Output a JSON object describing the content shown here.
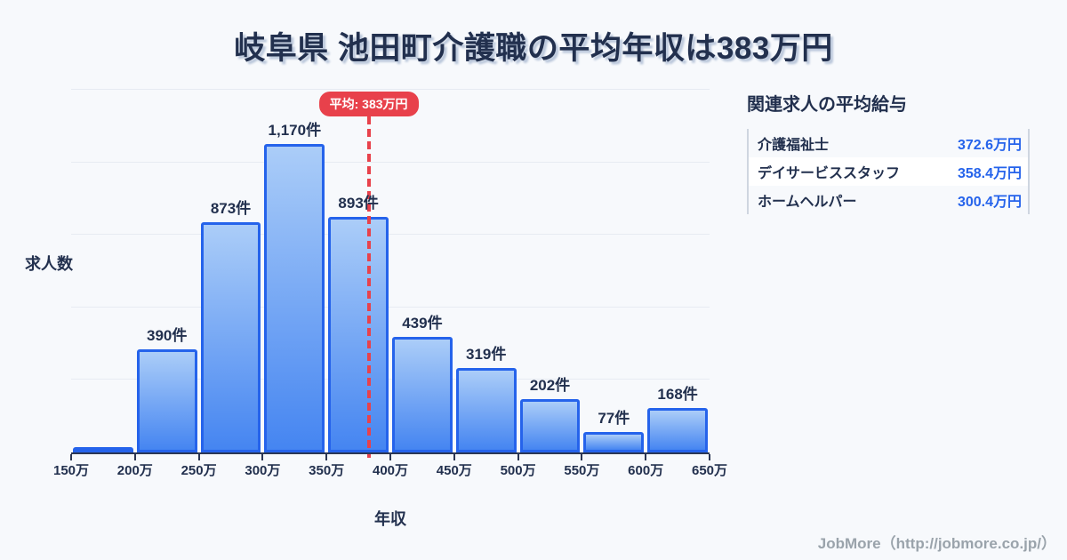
{
  "title": "岐阜県 池田町介護職の平均年収は383万円",
  "chart_data": {
    "type": "bar",
    "title": "岐阜県 池田町介護職の平均年収は383万円",
    "xlabel": "年収",
    "ylabel": "求人数",
    "x_ticks": [
      "150万",
      "200万",
      "250万",
      "300万",
      "350万",
      "400万",
      "450万",
      "500万",
      "550万",
      "600万",
      "650万"
    ],
    "bin_edges": [
      150,
      200,
      250,
      300,
      350,
      400,
      450,
      500,
      550,
      600,
      650
    ],
    "values": [
      15,
      390,
      873,
      1170,
      893,
      439,
      319,
      202,
      77,
      168
    ],
    "bar_labels": [
      "",
      "390件",
      "873件",
      "1,170件",
      "893件",
      "439件",
      "319件",
      "202件",
      "77件",
      "168件"
    ],
    "ylim": [
      0,
      1375
    ],
    "grid": "horizontal",
    "xlim": [
      150,
      650
    ],
    "average": {
      "value": 383,
      "label": "平均: 383万円"
    }
  },
  "side_panel": {
    "heading": "関連求人の平均給与",
    "rows": [
      {
        "label": "介護福祉士",
        "value": "372.6万円"
      },
      {
        "label": "デイサービススタッフ",
        "value": "358.4万円"
      },
      {
        "label": "ホームヘルパー",
        "value": "300.4万円"
      }
    ]
  },
  "footer": {
    "credit": "JobMore（http://jobmore.co.jp/）"
  },
  "colors": {
    "background": "#f7f9fc",
    "text_dark": "#22304e",
    "bar_border": "#2563eb",
    "bar_gradient_top": "#abcdf8",
    "bar_gradient_bottom": "#4585f1",
    "average_red": "#e8414b",
    "value_blue": "#2563eb",
    "grid_line": "#e7ebf2",
    "axis": "#2b3654",
    "table_border": "#cfd6e0",
    "highlight_row": "#ffffff",
    "footer_gray": "#9aa3ab",
    "title_shadow": "#b9c6da"
  }
}
